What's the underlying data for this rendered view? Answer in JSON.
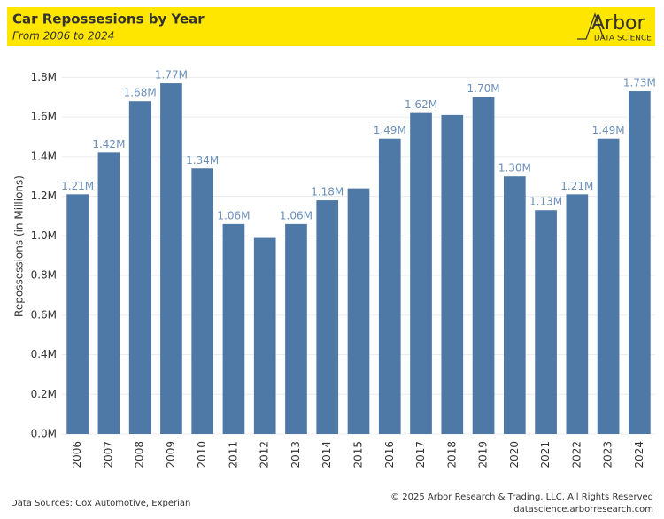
{
  "header": {
    "logo": "Arbor",
    "logo_sub": "DATA SCIENCE"
  },
  "chart_data": {
    "type": "bar",
    "title": "Car Repossesions by Year",
    "subtitle": "From 2006 to 2024",
    "y_label": "Repossessions (in Millions)",
    "categories": [
      "2006",
      "2007",
      "2008",
      "2009",
      "2010",
      "2011",
      "2012",
      "2013",
      "2014",
      "2015",
      "2016",
      "2017",
      "2018",
      "2019",
      "2020",
      "2021",
      "2022",
      "2023",
      "2024"
    ],
    "values": [
      1.21,
      1.42,
      1.68,
      1.77,
      1.34,
      1.06,
      0.99,
      1.06,
      1.18,
      1.24,
      1.49,
      1.62,
      1.61,
      1.7,
      1.3,
      1.13,
      1.21,
      1.49,
      1.73
    ],
    "value_labels": [
      "1.21M",
      "1.42M",
      "1.68M",
      "1.77M",
      "1.34M",
      "1.06M",
      null,
      "1.06M",
      "1.18M",
      null,
      "1.49M",
      "1.62M",
      null,
      "1.70M",
      "1.30M",
      "1.13M",
      "1.21M",
      "1.49M",
      "1.73M"
    ],
    "color": "#4e79a7",
    "ylim": [
      0,
      1.9
    ],
    "yticks": [
      {
        "value": 0,
        "label": "0.0M"
      },
      {
        "value": 0.2,
        "label": "0.2M"
      },
      {
        "value": 0.4,
        "label": "0.4M"
      },
      {
        "value": 0.6,
        "label": "0.6M"
      },
      {
        "value": 0.8,
        "label": "0.8M"
      },
      {
        "value": 1.0,
        "label": "1.0M"
      },
      {
        "value": 1.2,
        "label": "1.2M"
      },
      {
        "value": 1.4,
        "label": "1.4M"
      },
      {
        "value": 1.6,
        "label": "1.6M"
      },
      {
        "value": 1.8,
        "label": "1.8M"
      }
    ],
    "grid": true
  },
  "footer": {
    "source": "Data Sources: Cox Automotive, Experian",
    "copyright": "© 2025 Arbor Research & Trading, LLC. All Rights Reserved",
    "website": "datascience.arborresearch.com"
  }
}
